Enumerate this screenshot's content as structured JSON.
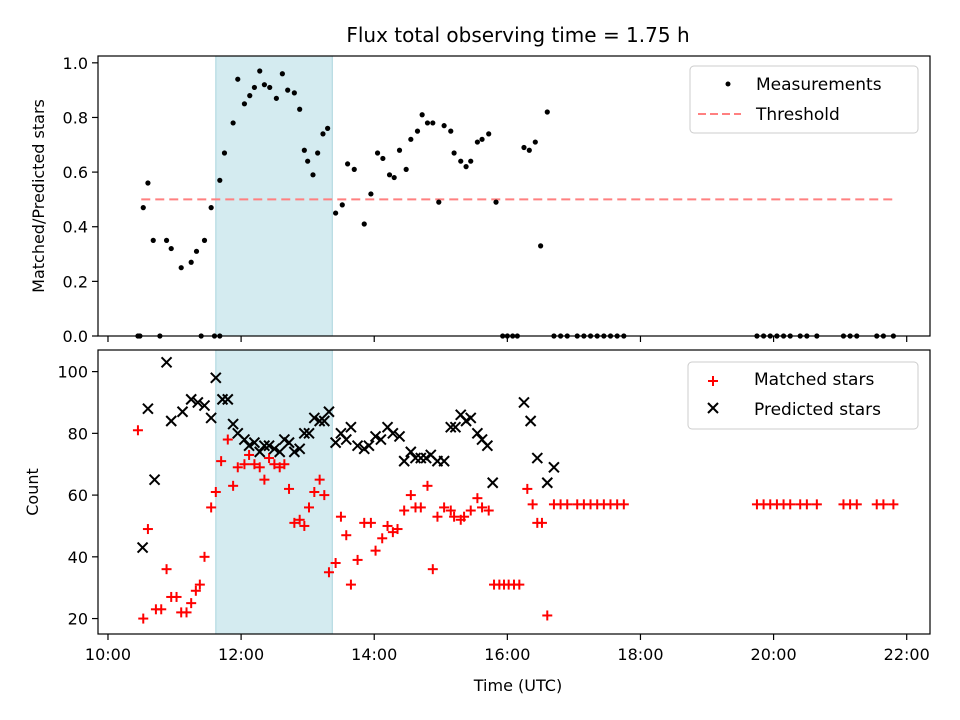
{
  "title": "Flux total observing time = 1.75 h",
  "colors": {
    "measurement": "#000000",
    "threshold": "#ff8080",
    "matched": "#ff0000",
    "predicted": "#000000",
    "highlight": "#d4ebf0",
    "highlight_edge": "#a9d4dd"
  },
  "chart_data": [
    {
      "type": "scatter",
      "ylabel": "Matched/Predicted stars",
      "xlabel": "",
      "xlim_hours": [
        9.85,
        22.35
      ],
      "ylim": [
        0,
        1.025
      ],
      "x_ticks": [
        10,
        12,
        14,
        16,
        18,
        20,
        22
      ],
      "y_ticks": [
        0.0,
        0.2,
        0.4,
        0.6,
        0.8,
        1.0
      ],
      "y_tick_labels": [
        "0.0",
        "0.2",
        "0.4",
        "0.6",
        "0.8",
        "1.0"
      ],
      "highlight_span_hours": [
        11.62,
        13.37
      ],
      "legend": {
        "placement": "top-right",
        "entries": [
          "Measurements",
          "Threshold"
        ]
      },
      "threshold": {
        "name": "Threshold",
        "y": 0.5,
        "x_range_hours": [
          10.5,
          21.8
        ],
        "style": "dashed"
      },
      "series": [
        {
          "name": "Measurements",
          "marker": "dot",
          "x_hours": [
            10.45,
            10.53,
            10.6,
            10.68,
            10.78,
            10.88,
            10.95,
            11.1,
            11.25,
            11.33,
            11.45,
            11.55,
            11.68,
            11.75,
            11.88,
            11.95,
            12.05,
            12.13,
            12.2,
            12.28,
            12.35,
            12.43,
            12.53,
            12.62,
            12.7,
            12.8,
            12.88,
            12.95,
            13.0,
            13.08,
            13.15,
            13.23,
            13.3,
            13.42,
            13.52,
            13.6,
            13.7,
            13.85,
            13.95,
            14.05,
            14.13,
            14.23,
            14.3,
            14.38,
            14.48,
            14.55,
            14.65,
            14.72,
            14.8,
            14.88,
            14.97,
            15.05,
            15.15,
            15.2,
            15.3,
            15.38,
            15.45,
            15.55,
            15.62,
            15.72,
            15.83,
            15.93,
            16.0,
            16.08,
            16.15,
            16.25,
            16.33,
            16.42,
            16.5,
            16.6,
            16.7,
            16.8,
            16.9,
            17.05,
            17.15,
            17.25,
            17.35,
            17.45,
            17.55,
            17.65,
            17.75,
            19.75,
            19.85,
            19.95,
            20.05,
            20.15,
            20.25,
            20.4,
            20.5,
            20.65,
            21.05,
            21.15,
            21.25,
            21.55,
            21.65,
            21.8,
            10.48,
            11.4,
            11.6,
            11.68
          ],
          "y": [
            0.0,
            0.47,
            0.56,
            0.35,
            0.0,
            0.35,
            0.32,
            0.25,
            0.27,
            0.31,
            0.35,
            0.47,
            0.57,
            0.67,
            0.78,
            0.94,
            0.85,
            0.88,
            0.91,
            0.97,
            0.92,
            0.91,
            0.87,
            0.96,
            0.9,
            0.89,
            0.83,
            0.68,
            0.64,
            0.59,
            0.67,
            0.74,
            0.76,
            0.45,
            0.48,
            0.63,
            0.61,
            0.41,
            0.52,
            0.67,
            0.65,
            0.59,
            0.58,
            0.68,
            0.61,
            0.72,
            0.75,
            0.81,
            0.78,
            0.78,
            0.49,
            0.77,
            0.75,
            0.67,
            0.64,
            0.62,
            0.64,
            0.71,
            0.72,
            0.74,
            0.49,
            0.0,
            0.0,
            0.0,
            0.0,
            0.69,
            0.68,
            0.71,
            0.33,
            0.82,
            0.0,
            0.0,
            0.0,
            0.0,
            0.0,
            0.0,
            0.0,
            0.0,
            0.0,
            0.0,
            0.0,
            0.0,
            0.0,
            0.0,
            0.0,
            0.0,
            0.0,
            0.0,
            0.0,
            0.0,
            0.0,
            0.0,
            0.0,
            0.0,
            0.0,
            0.0,
            0.0,
            0.0,
            0.0,
            0.0
          ]
        }
      ]
    },
    {
      "type": "scatter",
      "ylabel": "Count",
      "xlabel": "Time (UTC)",
      "xlim_hours": [
        9.85,
        22.35
      ],
      "ylim": [
        15,
        107
      ],
      "x_ticks": [
        10,
        12,
        14,
        16,
        18,
        20,
        22
      ],
      "x_tick_labels": [
        "10:00",
        "12:00",
        "14:00",
        "16:00",
        "18:00",
        "20:00",
        "22:00"
      ],
      "y_ticks": [
        20,
        40,
        60,
        80,
        100
      ],
      "y_tick_labels": [
        "20",
        "40",
        "60",
        "80",
        "100"
      ],
      "highlight_span_hours": [
        11.62,
        13.37
      ],
      "legend": {
        "placement": "top-right",
        "entries": [
          "Matched stars",
          "Predicted stars"
        ]
      },
      "series": [
        {
          "name": "Matched stars",
          "marker": "plus",
          "x_hours": [
            10.45,
            10.53,
            10.6,
            10.72,
            10.8,
            10.88,
            10.95,
            11.03,
            11.1,
            11.18,
            11.25,
            11.32,
            11.38,
            11.45,
            11.55,
            11.62,
            11.7,
            11.8,
            11.88,
            11.95,
            12.05,
            12.12,
            12.2,
            12.28,
            12.35,
            12.42,
            12.5,
            12.58,
            12.65,
            12.72,
            12.8,
            12.88,
            12.95,
            13.02,
            13.1,
            13.18,
            13.25,
            13.32,
            13.42,
            13.5,
            13.58,
            13.65,
            13.75,
            13.85,
            13.95,
            14.02,
            14.12,
            14.2,
            14.28,
            14.35,
            14.45,
            14.55,
            14.62,
            14.7,
            14.8,
            14.88,
            14.95,
            15.05,
            15.15,
            15.2,
            15.3,
            15.35,
            15.45,
            15.55,
            15.62,
            15.72,
            15.8,
            15.88,
            15.95,
            16.02,
            16.1,
            16.18,
            16.3,
            16.38,
            16.45,
            16.52,
            16.6,
            16.7,
            16.8,
            16.9,
            17.05,
            17.15,
            17.25,
            17.35,
            17.45,
            17.55,
            17.65,
            17.75,
            19.75,
            19.85,
            19.95,
            20.05,
            20.15,
            20.25,
            20.4,
            20.5,
            20.65,
            21.05,
            21.15,
            21.25,
            21.55,
            21.65,
            21.8
          ],
          "y": [
            81,
            20,
            49,
            23,
            23,
            36,
            27,
            27,
            22,
            22,
            25,
            29,
            31,
            40,
            56,
            61,
            71,
            78,
            63,
            69,
            70,
            73,
            70,
            69,
            65,
            72,
            70,
            69,
            70,
            62,
            51,
            52,
            50,
            56,
            61,
            65,
            60,
            35,
            38,
            53,
            47,
            31,
            39,
            51,
            51,
            42,
            46,
            50,
            48,
            49,
            55,
            60,
            56,
            56,
            63,
            36,
            53,
            56,
            55,
            53,
            52,
            53,
            55,
            59,
            56,
            55,
            31,
            31,
            31,
            31,
            31,
            31,
            62,
            57,
            51,
            51,
            21,
            57,
            57,
            57,
            57,
            57,
            57,
            57,
            57,
            57,
            57,
            57,
            57,
            57,
            57,
            57,
            57,
            57,
            57,
            57,
            57,
            57,
            57,
            57,
            57,
            57,
            57
          ]
        },
        {
          "name": "Predicted stars",
          "marker": "x",
          "x_hours": [
            10.52,
            10.6,
            10.7,
            10.88,
            10.95,
            11.12,
            11.25,
            11.35,
            11.45,
            11.55,
            11.62,
            11.72,
            11.8,
            11.88,
            11.95,
            12.05,
            12.12,
            12.2,
            12.28,
            12.35,
            12.42,
            12.5,
            12.58,
            12.65,
            12.72,
            12.8,
            12.88,
            12.95,
            13.02,
            13.1,
            13.18,
            13.25,
            13.32,
            13.42,
            13.5,
            13.58,
            13.65,
            13.75,
            13.85,
            13.92,
            14.02,
            14.1,
            14.2,
            14.28,
            14.38,
            14.45,
            14.55,
            14.62,
            14.7,
            14.78,
            14.85,
            14.95,
            15.05,
            15.15,
            15.22,
            15.3,
            15.38,
            15.45,
            15.55,
            15.62,
            15.7,
            15.78,
            16.25,
            16.35,
            16.45,
            16.6,
            16.7
          ],
          "y": [
            43,
            88,
            65,
            103,
            84,
            87,
            91,
            90,
            89,
            85,
            98,
            91,
            91,
            83,
            80,
            78,
            76,
            77,
            74,
            76,
            76,
            75,
            74,
            78,
            77,
            74,
            75,
            80,
            80,
            85,
            84,
            84,
            87,
            77,
            80,
            78,
            82,
            76,
            75,
            76,
            79,
            78,
            82,
            80,
            79,
            71,
            74,
            72,
            72,
            72,
            73,
            71,
            71,
            82,
            82,
            86,
            84,
            85,
            80,
            78,
            76,
            64,
            90,
            84,
            72,
            64,
            69
          ]
        }
      ]
    }
  ]
}
